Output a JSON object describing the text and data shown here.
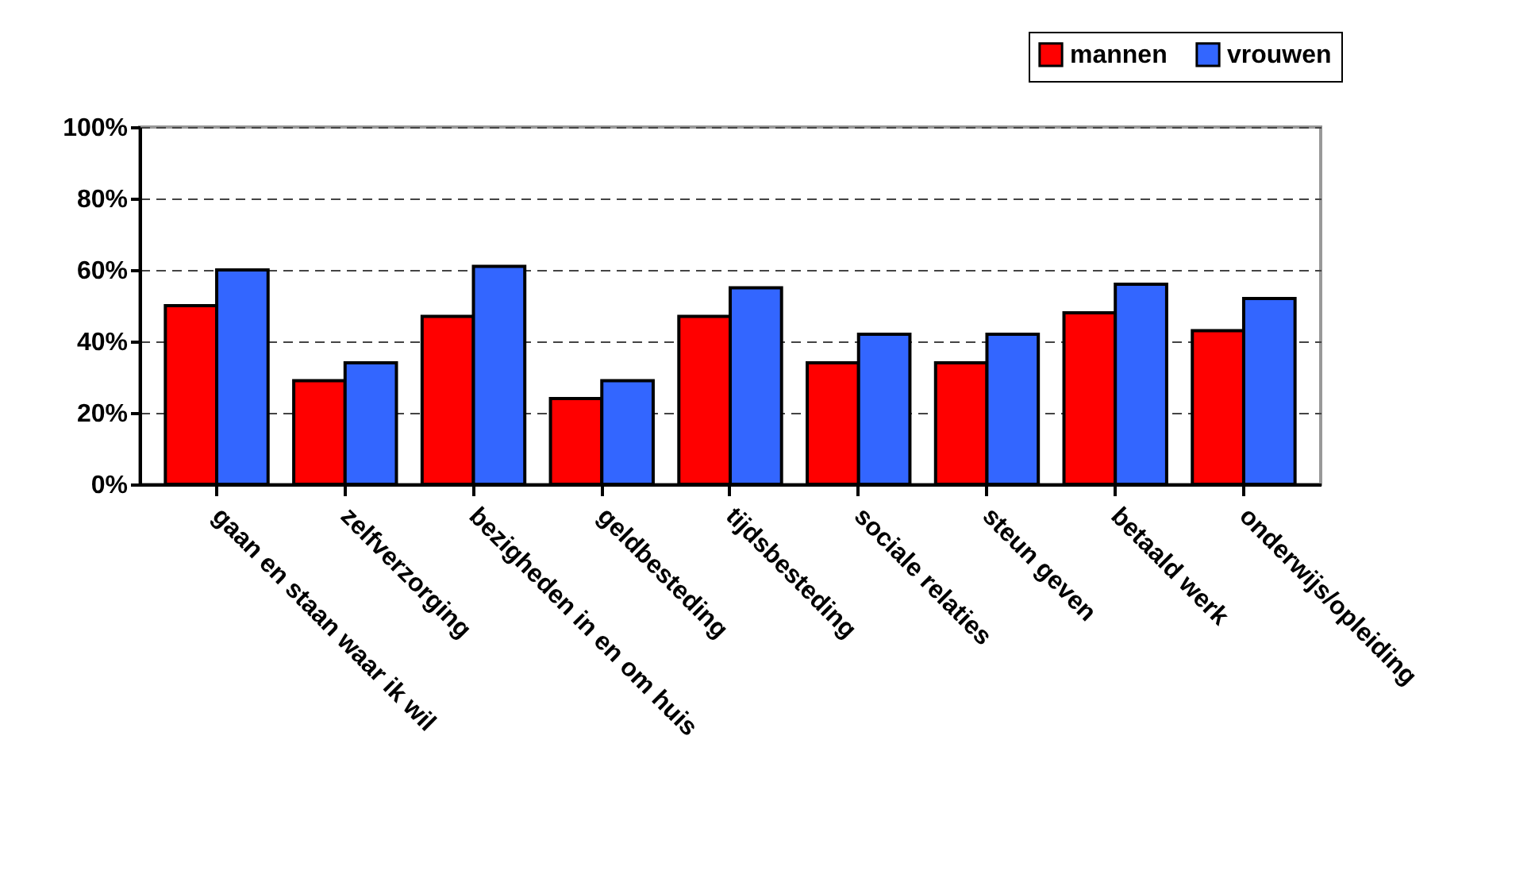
{
  "chart_data": {
    "type": "bar",
    "categories": [
      "gaan en staan waar ik wil",
      "zelfverzorging",
      "bezigheden in en om huis",
      "geldbesteding",
      "tijdsbesteding",
      "sociale relaties",
      "steun geven",
      "betaald werk",
      "onderwijs/opleiding"
    ],
    "series": [
      {
        "name": "mannen",
        "color": "#ff0000",
        "values": [
          50,
          29,
          47,
          24,
          47,
          34,
          34,
          48,
          43
        ]
      },
      {
        "name": "vrouwen",
        "color": "#3366ff",
        "values": [
          60,
          34,
          61,
          29,
          55,
          42,
          42,
          56,
          52
        ]
      }
    ],
    "ylim": [
      0,
      100
    ],
    "yticks": [
      {
        "value": 0,
        "label": "0%"
      },
      {
        "value": 20,
        "label": "20%"
      },
      {
        "value": 40,
        "label": "40%"
      },
      {
        "value": 60,
        "label": "60%"
      },
      {
        "value": 80,
        "label": "80%"
      },
      {
        "value": 100,
        "label": "100%"
      }
    ],
    "grid": "y",
    "legend": "top right"
  }
}
